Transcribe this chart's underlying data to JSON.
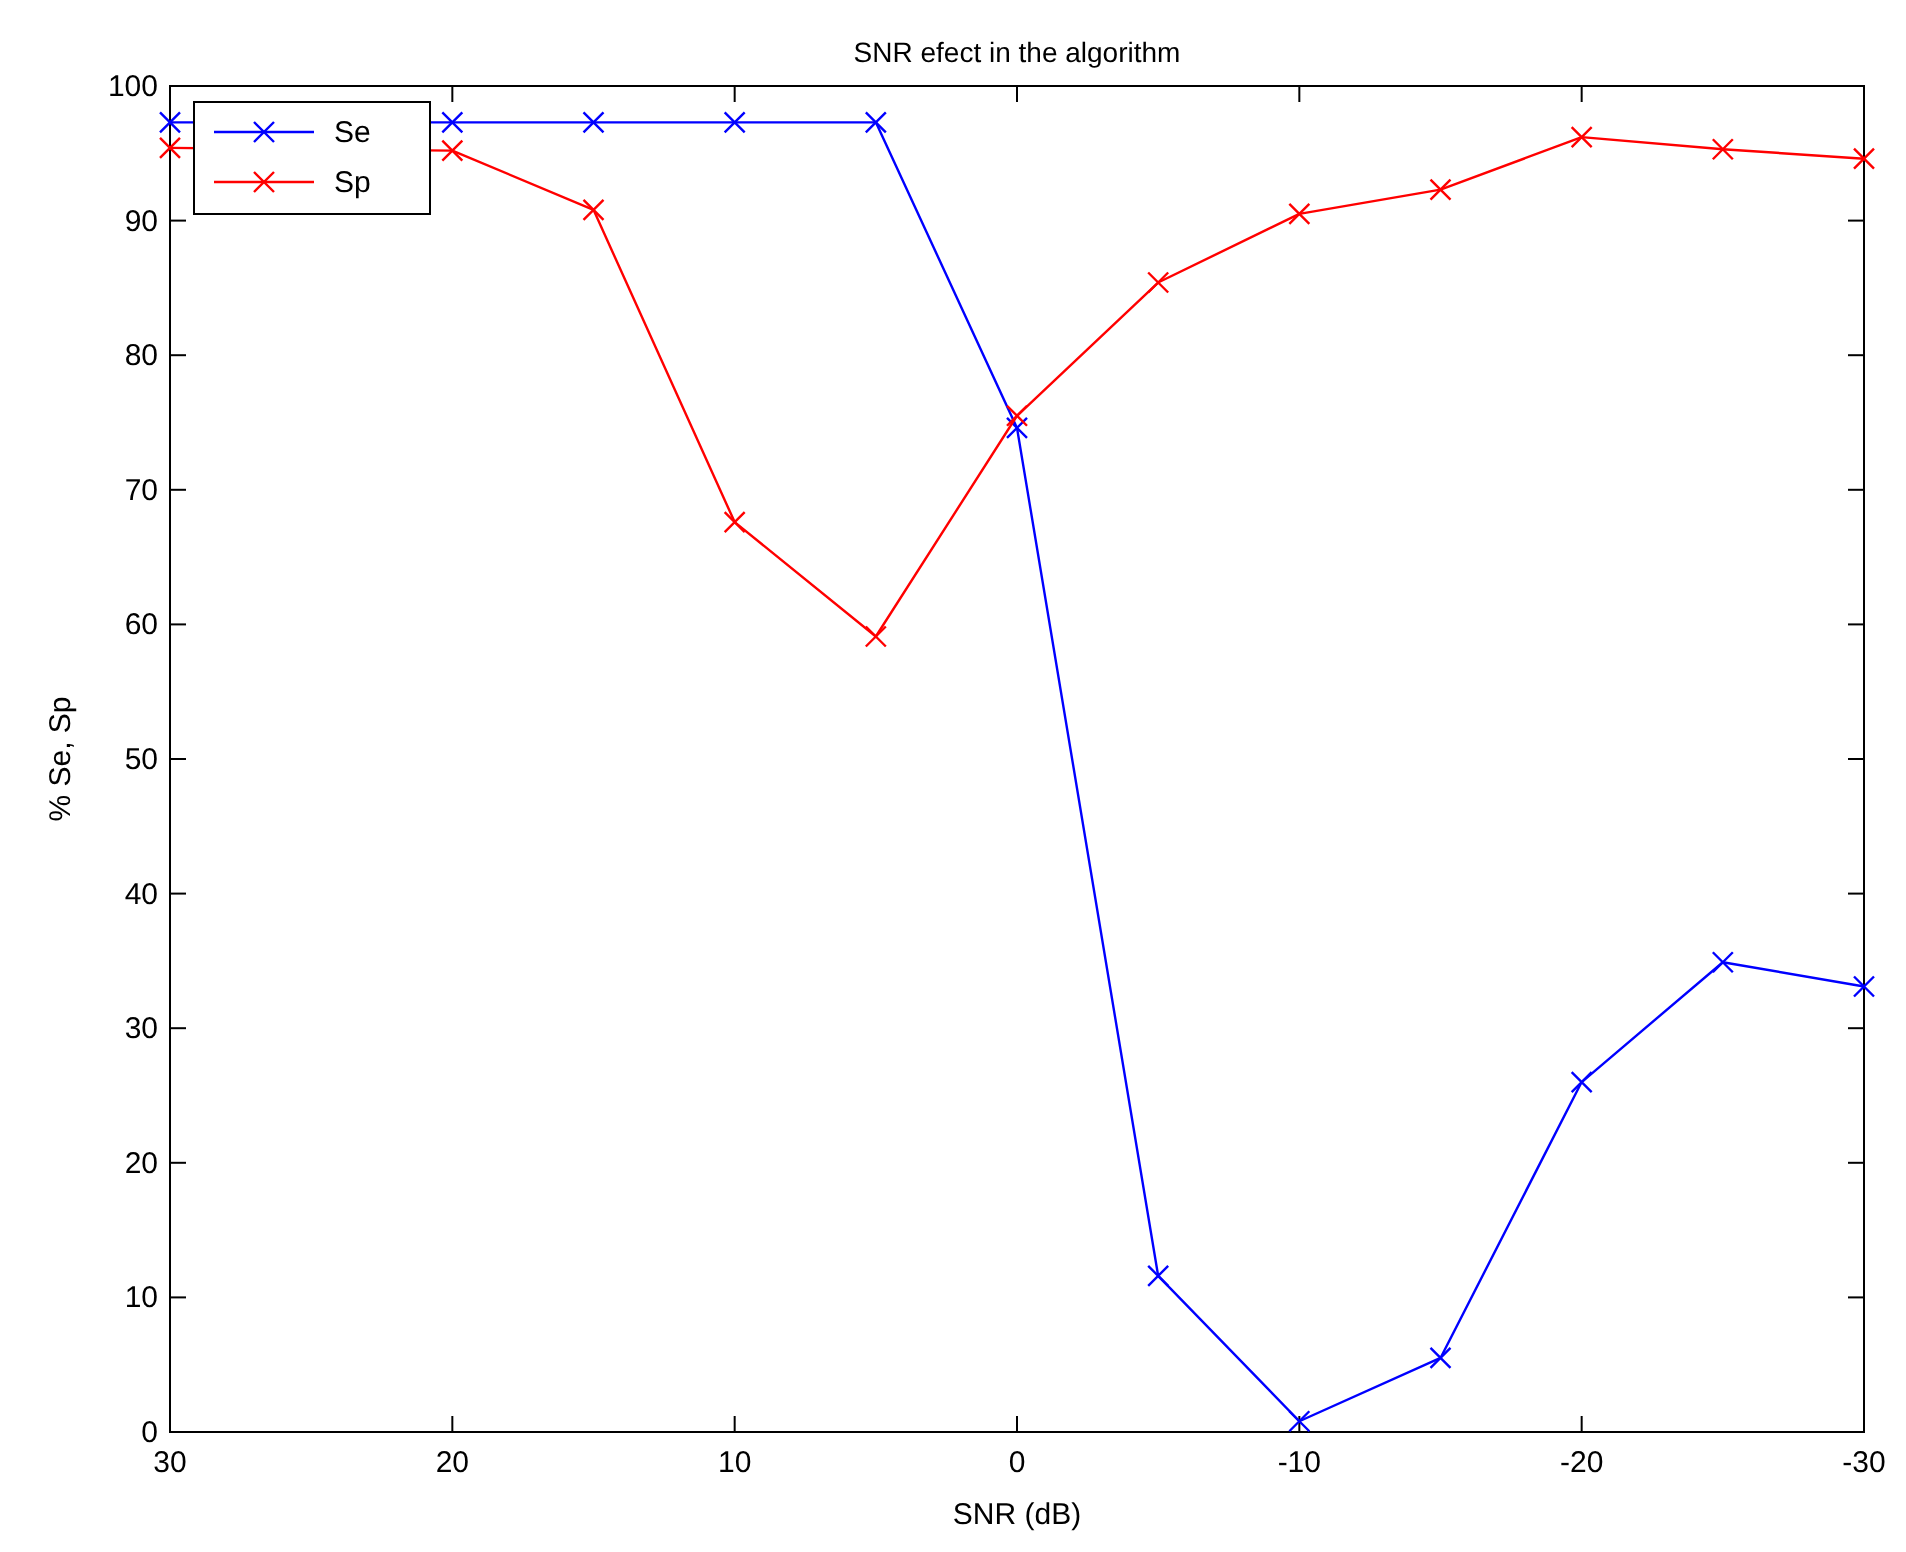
{
  "chart_data": {
    "type": "line",
    "title": "SNR efect in the algorithm",
    "xlabel": "SNR (dB)",
    "ylabel": "% Se, Sp",
    "x": [
      30,
      25,
      20,
      15,
      10,
      5,
      0,
      -5,
      -10,
      -15,
      -20,
      -25,
      -30
    ],
    "series": [
      {
        "name": "Se",
        "color": "#0000ff",
        "values": [
          97.3,
          null,
          97.3,
          97.3,
          97.3,
          97.3,
          74.6,
          11.6,
          0.8,
          5.5,
          26,
          34.9,
          33.1
        ]
      },
      {
        "name": "Sp",
        "color": "#ff0000",
        "values": [
          95.4,
          null,
          95.2,
          90.8,
          67.6,
          59.1,
          75.5,
          85.4,
          90.5,
          92.3,
          96.2,
          95.3,
          94.6
        ]
      }
    ],
    "xlim": [
      30,
      -30
    ],
    "xticks": [
      30,
      20,
      10,
      0,
      -10,
      -20,
      -30
    ],
    "ylim": [
      0,
      100
    ],
    "yticks": [
      0,
      10,
      20,
      30,
      40,
      50,
      60,
      70,
      80,
      90,
      100
    ],
    "grid": false,
    "legend": "top left",
    "marker": "cross",
    "line_style": "solid"
  }
}
